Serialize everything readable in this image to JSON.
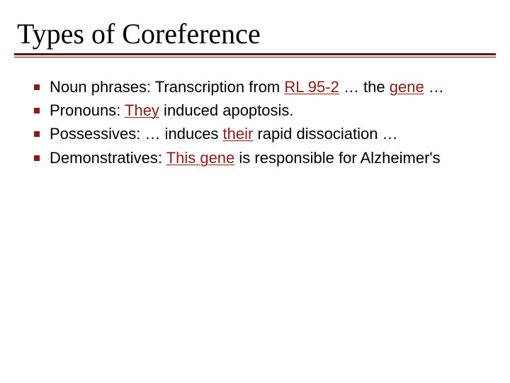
{
  "colors": {
    "accent": "#8b1a1a",
    "rule": "#531714",
    "text": "#000000",
    "background": "#ffffff"
  },
  "typography": {
    "title_font": "Georgia, serif",
    "title_size_pt": 30,
    "body_font": "Verdana, sans-serif",
    "body_size_pt": 17
  },
  "title": "Types of Coreference",
  "bullets": [
    {
      "segments": [
        {
          "text": "Noun phrases: Transcription from ",
          "accent": false,
          "underline": false
        },
        {
          "text": "RL 95-2",
          "accent": true,
          "underline": true
        },
        {
          "text": " … the ",
          "accent": false,
          "underline": false
        },
        {
          "text": "gene",
          "accent": true,
          "underline": true
        },
        {
          "text": " …",
          "accent": false,
          "underline": false
        }
      ]
    },
    {
      "segments": [
        {
          "text": "Pronouns: ",
          "accent": false,
          "underline": false
        },
        {
          "text": "They",
          "accent": true,
          "underline": true
        },
        {
          "text": " induced apoptosis.",
          "accent": false,
          "underline": false
        }
      ]
    },
    {
      "segments": [
        {
          "text": "Possessives: … induces ",
          "accent": false,
          "underline": false
        },
        {
          "text": "their",
          "accent": true,
          "underline": true
        },
        {
          "text": " rapid dissociation …",
          "accent": false,
          "underline": false
        }
      ]
    },
    {
      "segments": [
        {
          "text": "Demonstratives: ",
          "accent": false,
          "underline": false
        },
        {
          "text": "This gene",
          "accent": true,
          "underline": true
        },
        {
          "text": " is responsible for Alzheimer's",
          "accent": false,
          "underline": false
        }
      ]
    }
  ]
}
